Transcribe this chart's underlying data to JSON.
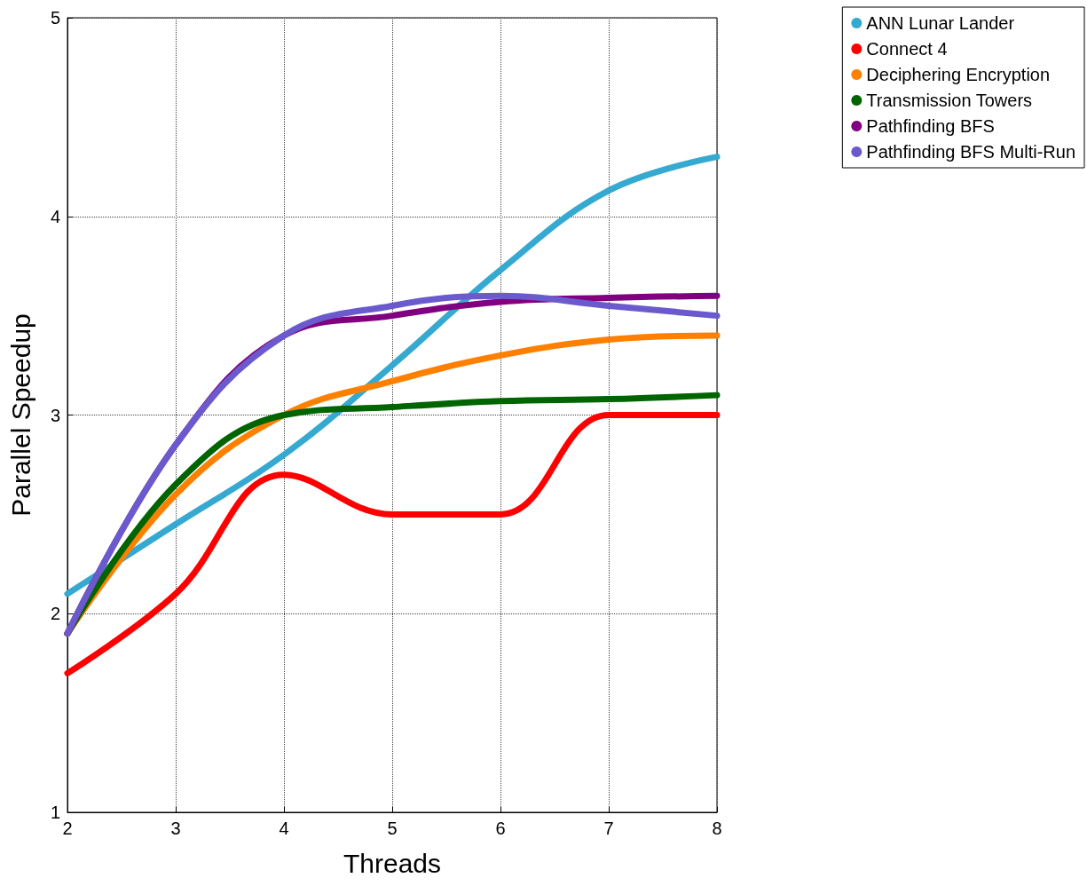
{
  "chart_data": {
    "type": "line",
    "xlabel": "Threads",
    "ylabel": "Parallel Speedup",
    "x": [
      2,
      3,
      4,
      5,
      6,
      7,
      8
    ],
    "series": [
      {
        "name": "ANN Lunar Lander",
        "color": "#36a9d1",
        "values": [
          2.1,
          2.45,
          2.8,
          3.25,
          3.73,
          4.13,
          4.3
        ]
      },
      {
        "name": "Connect 4",
        "color": "#ff0000",
        "values": [
          1.7,
          2.1,
          2.7,
          2.5,
          2.5,
          3.0,
          3.0
        ]
      },
      {
        "name": "Deciphering Encryption",
        "color": "#ff8000",
        "values": [
          1.9,
          2.6,
          3.0,
          3.17,
          3.3,
          3.38,
          3.4
        ]
      },
      {
        "name": "Transmission Towers",
        "color": "#006400",
        "values": [
          1.9,
          2.65,
          3.0,
          3.04,
          3.07,
          3.08,
          3.1
        ]
      },
      {
        "name": "Pathfinding BFS",
        "color": "#800080",
        "values": [
          1.9,
          2.85,
          3.4,
          3.5,
          3.57,
          3.59,
          3.6
        ]
      },
      {
        "name": "Pathfinding BFS Multi-Run",
        "color": "#6a5acd",
        "values": [
          1.9,
          2.85,
          3.4,
          3.55,
          3.6,
          3.55,
          3.5
        ]
      }
    ],
    "xlim": [
      2,
      8
    ],
    "xticks": [
      2,
      3,
      4,
      5,
      6,
      7,
      8
    ],
    "ylim": [
      1,
      5
    ],
    "yticks": [
      1,
      2,
      3,
      4,
      5
    ],
    "grid": true,
    "legend": "top right",
    "marker": "none",
    "line_style": "solid"
  }
}
